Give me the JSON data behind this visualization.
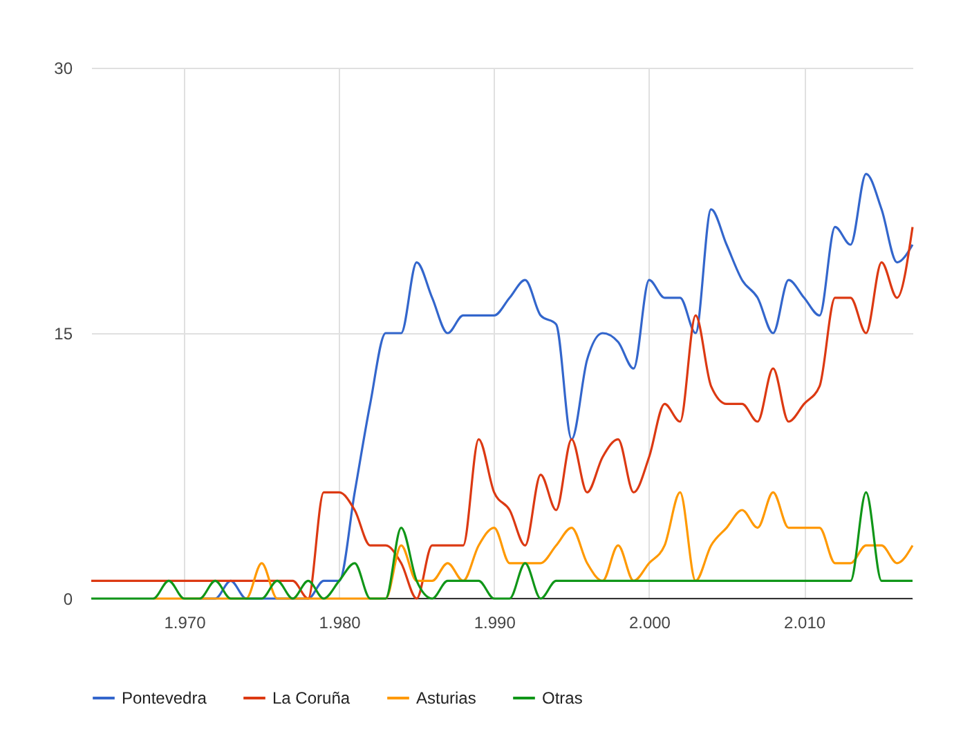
{
  "chart_data": {
    "type": "line",
    "x": [
      1964,
      1965,
      1966,
      1967,
      1968,
      1969,
      1970,
      1971,
      1972,
      1973,
      1974,
      1975,
      1976,
      1977,
      1978,
      1979,
      1980,
      1981,
      1982,
      1983,
      1984,
      1985,
      1986,
      1987,
      1988,
      1989,
      1990,
      1991,
      1992,
      1993,
      1994,
      1995,
      1996,
      1997,
      1998,
      1999,
      2000,
      2001,
      2002,
      2003,
      2004,
      2005,
      2006,
      2007,
      2008,
      2009,
      2010,
      2011,
      2012,
      2013,
      2014,
      2015,
      2016,
      2017
    ],
    "series": [
      {
        "name": "Pontevedra",
        "color": "#3366cc",
        "values": [
          null,
          null,
          null,
          null,
          null,
          null,
          null,
          0,
          0,
          1,
          0,
          0,
          0,
          0,
          0,
          1,
          1,
          6,
          11,
          15,
          15,
          19,
          17,
          15,
          16,
          16,
          16,
          17,
          18,
          16,
          15.5,
          9,
          13.5,
          15,
          14.5,
          13,
          18,
          17,
          17,
          15,
          22,
          20,
          18,
          17,
          15,
          18,
          17,
          16,
          21,
          20,
          24,
          22,
          19,
          20
        ]
      },
      {
        "name": "La Coruña",
        "color": "#dc3912",
        "values": [
          1,
          1,
          1,
          1,
          1,
          1,
          1,
          1,
          1,
          1,
          1,
          1,
          1,
          1,
          0,
          6,
          6,
          5,
          3,
          3,
          2,
          0,
          3,
          3,
          3,
          9,
          6,
          5,
          3,
          7,
          5,
          9,
          6,
          8,
          9,
          6,
          8,
          11,
          10,
          16,
          12,
          11,
          11,
          10,
          13,
          10,
          11,
          12,
          17,
          17,
          15,
          19,
          17,
          21
        ]
      },
      {
        "name": "Asturias",
        "color": "#ff9900",
        "values": [
          null,
          null,
          null,
          null,
          0,
          0,
          0,
          0,
          0,
          0,
          0,
          2,
          0,
          0,
          0,
          0,
          0,
          0,
          0,
          0,
          3,
          1,
          1,
          2,
          1,
          3,
          4,
          2,
          2,
          2,
          3,
          4,
          2,
          1,
          3,
          1,
          2,
          3,
          6,
          1,
          3,
          4,
          5,
          4,
          6,
          4,
          4,
          4,
          2,
          2,
          3,
          3,
          2,
          3
        ]
      },
      {
        "name": "Otras",
        "color": "#109618",
        "values": [
          0,
          0,
          0,
          0,
          0,
          1,
          0,
          0,
          1,
          0,
          0,
          0,
          1,
          0,
          1,
          0,
          1,
          2,
          0,
          0,
          4,
          1,
          0,
          1,
          1,
          1,
          0,
          0,
          2,
          0,
          1,
          1,
          1,
          1,
          1,
          1,
          1,
          1,
          1,
          1,
          1,
          1,
          1,
          1,
          1,
          1,
          1,
          1,
          1,
          1,
          6,
          1,
          1,
          1
        ]
      }
    ],
    "xlim": [
      1964,
      2017
    ],
    "xticks": [
      {
        "value": 1970,
        "label": "1.970"
      },
      {
        "value": 1980,
        "label": "1.980"
      },
      {
        "value": 1990,
        "label": "1.990"
      },
      {
        "value": 2000,
        "label": "2.000"
      },
      {
        "value": 2010,
        "label": "2.010"
      }
    ],
    "ylim": [
      0,
      30
    ],
    "yticks": [
      0,
      15,
      30
    ],
    "grid": true,
    "legend": "bottom",
    "marker": "none",
    "line_style": "solid"
  }
}
